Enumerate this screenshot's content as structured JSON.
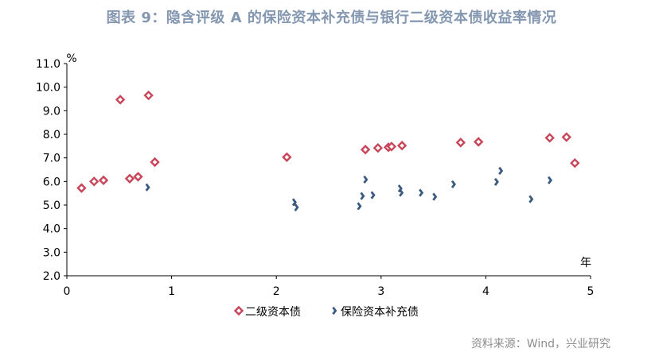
{
  "chart_data": {
    "type": "scatter",
    "title": "图表 9：隐含评级 A 的保险资本补充债与银行二级资本债收益率情况",
    "ylabel": "%",
    "xlabel": "年",
    "xlim": [
      0,
      5
    ],
    "ylim": [
      2.0,
      11.0
    ],
    "x_ticks": [
      "0",
      "1",
      "2",
      "3",
      "4",
      "5"
    ],
    "y_ticks": [
      "2.0",
      "3.0",
      "4.0",
      "5.0",
      "6.0",
      "7.0",
      "8.0",
      "9.0",
      "10.0",
      "11.0"
    ],
    "grid": false,
    "legend_position": "bottom",
    "series": [
      {
        "name": "二级资本债",
        "color": "#c8465a",
        "marker": "diamond",
        "points": [
          [
            0.14,
            5.72
          ],
          [
            0.26,
            6.0
          ],
          [
            0.35,
            6.05
          ],
          [
            0.51,
            9.47
          ],
          [
            0.6,
            6.12
          ],
          [
            0.68,
            6.2
          ],
          [
            0.78,
            9.65
          ],
          [
            0.84,
            6.82
          ],
          [
            2.1,
            7.03
          ],
          [
            2.85,
            7.35
          ],
          [
            2.97,
            7.42
          ],
          [
            3.07,
            7.45
          ],
          [
            3.1,
            7.48
          ],
          [
            3.2,
            7.52
          ],
          [
            3.76,
            7.65
          ],
          [
            3.93,
            7.68
          ],
          [
            4.61,
            7.85
          ],
          [
            4.77,
            7.88
          ],
          [
            4.85,
            6.78
          ]
        ]
      },
      {
        "name": "保险资本补充债",
        "color": "#3b5a80",
        "marker": "arrow",
        "points": [
          [
            0.77,
            5.75
          ],
          [
            2.17,
            5.12
          ],
          [
            2.19,
            4.9
          ],
          [
            2.79,
            4.95
          ],
          [
            2.82,
            5.38
          ],
          [
            2.85,
            6.08
          ],
          [
            2.92,
            5.42
          ],
          [
            3.18,
            5.7
          ],
          [
            3.19,
            5.52
          ],
          [
            3.38,
            5.52
          ],
          [
            3.51,
            5.35
          ],
          [
            3.69,
            5.88
          ],
          [
            4.1,
            5.98
          ],
          [
            4.14,
            6.45
          ],
          [
            4.43,
            5.25
          ],
          [
            4.61,
            6.05
          ]
        ]
      }
    ]
  },
  "source": "资料来源：Wind，兴业研究"
}
